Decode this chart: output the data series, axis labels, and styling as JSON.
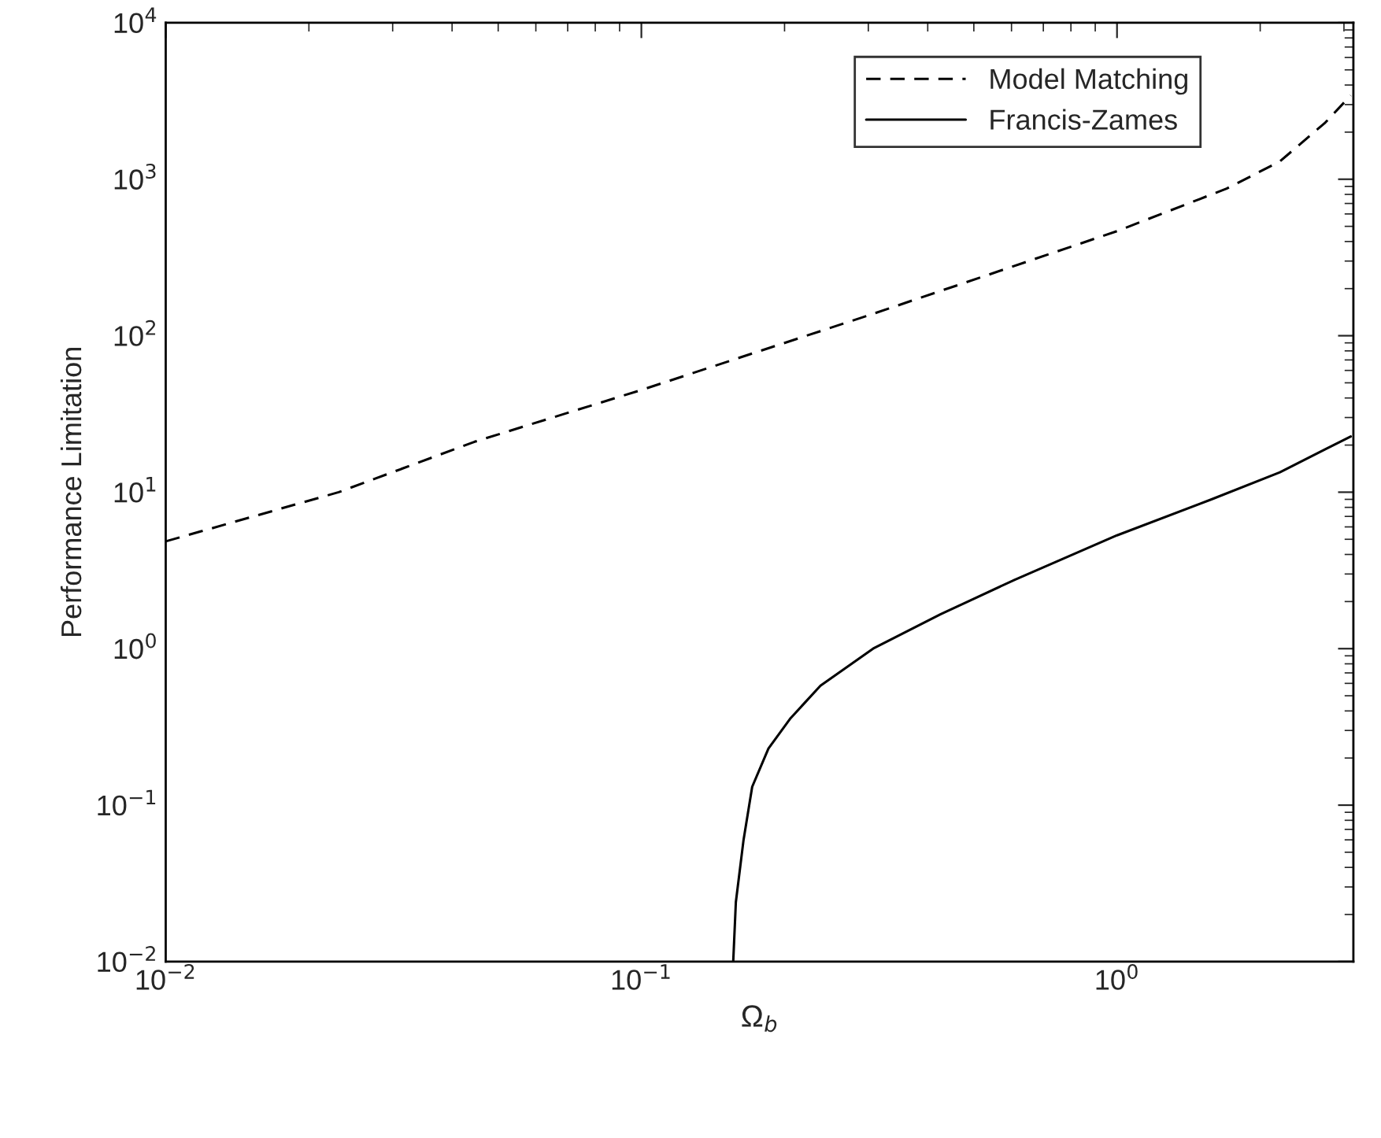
{
  "chart_data": {
    "type": "line",
    "xlabel": "Ω$_{b}$",
    "ylabel": "Performance Limitation",
    "log": "xy",
    "grid": false,
    "legend": "top right",
    "xlim": [
      0.01,
      3.14
    ],
    "ylim": [
      0.01,
      10000
    ],
    "xticks": [
      {
        "value": 0.01,
        "label": "10$^{−2}$"
      },
      {
        "value": 0.1,
        "label": "10$^{−1}$"
      },
      {
        "value": 1,
        "label": "10$^{0}$"
      }
    ],
    "yticks": [
      {
        "value": 0.01,
        "label": "10$^{−2}$"
      },
      {
        "value": 0.1,
        "label": "10$^{−1}$"
      },
      {
        "value": 1,
        "label": "10$^{0}$"
      },
      {
        "value": 10,
        "label": "10$^{1}$"
      },
      {
        "value": 100,
        "label": "10$^{2}$"
      },
      {
        "value": 1000,
        "label": "10$^{3}$"
      },
      {
        "value": 10000,
        "label": "10$^{4}$"
      }
    ],
    "series": [
      {
        "name": "Model Matching",
        "color": "#000000",
        "line_style": "dashed",
        "x": [
          0.01,
          0.0231,
          0.0446,
          0.1,
          0.307,
          1.0,
          1.7,
          2.2,
          2.74,
          3.1
        ],
        "values": [
          4.85,
          10,
          21,
          45,
          138,
          466,
          871,
          1300,
          2300,
          3430
        ]
      },
      {
        "name": "Francis-Zames",
        "color": "#000000",
        "line_style": "solid",
        "x": [
          0.156,
          0.158,
          0.164,
          0.171,
          0.185,
          0.206,
          0.238,
          0.307,
          0.426,
          0.61,
          1.0,
          1.58,
          2.2,
          2.74,
          3.1
        ],
        "values": [
          0.01,
          0.024,
          0.06,
          0.131,
          0.23,
          0.36,
          0.58,
          1.0,
          1.66,
          2.76,
          5.3,
          9.0,
          13.4,
          18.8,
          22.7
        ]
      }
    ]
  }
}
